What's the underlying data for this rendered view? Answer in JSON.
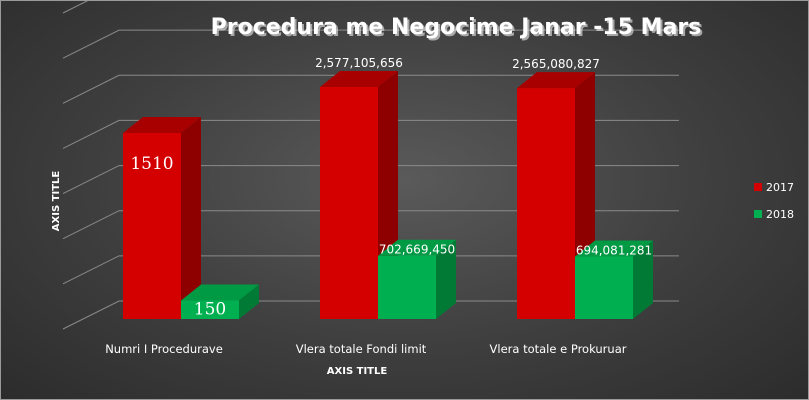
{
  "chart_data": {
    "type": "bar",
    "title": "Procedura me Negocime Janar -15 Mars",
    "xlabel": "AXIS TITLE",
    "ylabel": "AXIS TITLE",
    "categories": [
      "Numri I Procedurave",
      "Vlera totale Fondi limit",
      "Vlera totale e Prokuruar"
    ],
    "series": [
      {
        "name": "2017",
        "color": "#d40000",
        "values": [
          1510,
          2577105656,
          2565080827
        ],
        "labels": [
          "1510",
          "2,577,105,656",
          "2,565,080,827"
        ]
      },
      {
        "name": "2018",
        "color": "#00b050",
        "values": [
          150,
          702669450,
          694081281
        ],
        "labels": [
          "150",
          "702,669,450",
          "694,081,281"
        ]
      }
    ],
    "grid": true,
    "legend_position": "right",
    "three_d": true
  }
}
